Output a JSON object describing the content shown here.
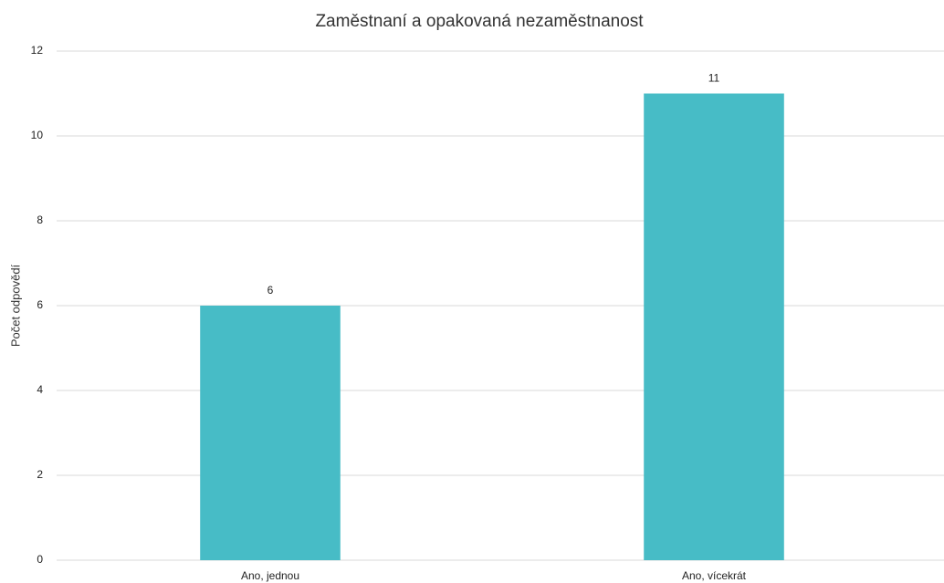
{
  "chart_data": {
    "type": "bar",
    "title": "Zaměstnaní a opakovaná nezaměstnanost",
    "y_label": "Počet odpovědí",
    "categories": [
      "Ano, jednou",
      "Ano, vícekrát"
    ],
    "values": [
      6,
      11
    ],
    "color": "#47bcc6",
    "ylim": [
      0,
      12
    ],
    "yticks": [
      0,
      2,
      4,
      6,
      8,
      10,
      12
    ],
    "grid": true,
    "data_labels": true
  }
}
